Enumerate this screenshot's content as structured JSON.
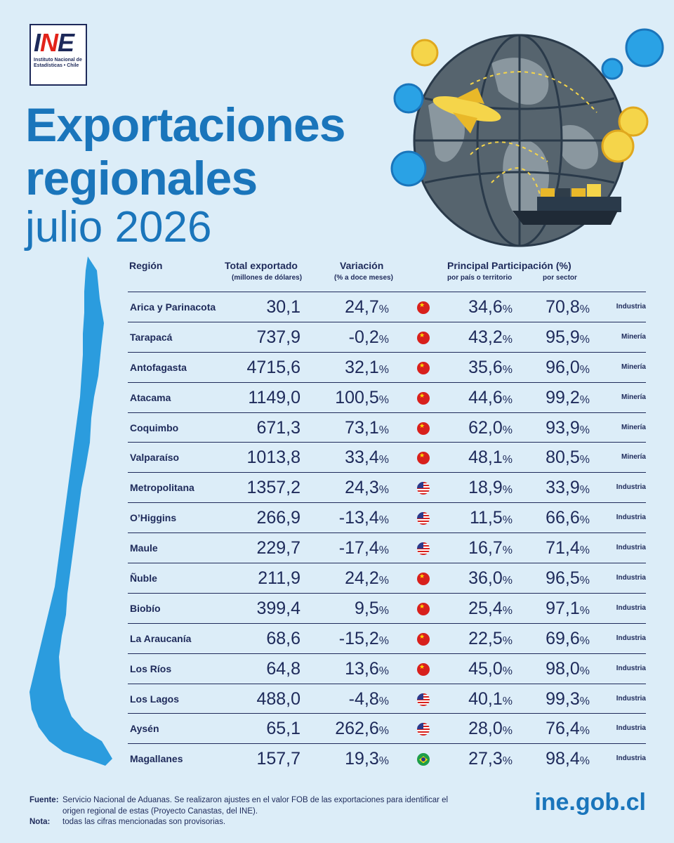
{
  "logo": {
    "mark_a": "I",
    "mark_b": "N",
    "mark_c": "E",
    "subtitle": "Instituto Nacional de Estadísticas • Chile"
  },
  "title": {
    "line1": "Exportaciones",
    "line2": "regionales",
    "line3": "julio 2026"
  },
  "headers": {
    "region": "Región",
    "total": "Total exportado",
    "total_sub": "(millones de dólares)",
    "variation": "Variación",
    "variation_sub": "(% a doce meses)",
    "participation": "Principal Participación (%)",
    "by_country": "por país o territorio",
    "by_sector": "por sector"
  },
  "colors": {
    "accent": "#1a75bb",
    "text": "#1e2a5a",
    "background": "#dcedf8"
  },
  "rows": [
    {
      "region": "Arica y Parinacota",
      "total": "30,1",
      "variation": "24,7",
      "flag": "china",
      "country_pct": "34,6",
      "sector_pct": "70,8",
      "sector": "Industria"
    },
    {
      "region": "Tarapacá",
      "total": "737,9",
      "variation": "-0,2",
      "flag": "china",
      "country_pct": "43,2",
      "sector_pct": "95,9",
      "sector": "Minería"
    },
    {
      "region": "Antofagasta",
      "total": "4715,6",
      "variation": "32,1",
      "flag": "china",
      "country_pct": "35,6",
      "sector_pct": "96,0",
      "sector": "Minería"
    },
    {
      "region": "Atacama",
      "total": "1149,0",
      "variation": "100,5",
      "flag": "china",
      "country_pct": "44,6",
      "sector_pct": "99,2",
      "sector": "Minería"
    },
    {
      "region": "Coquimbo",
      "total": "671,3",
      "variation": "73,1",
      "flag": "china",
      "country_pct": "62,0",
      "sector_pct": "93,9",
      "sector": "Minería"
    },
    {
      "region": "Valparaíso",
      "total": "1013,8",
      "variation": "33,4",
      "flag": "china",
      "country_pct": "48,1",
      "sector_pct": "80,5",
      "sector": "Minería"
    },
    {
      "region": "Metropolitana",
      "total": "1357,2",
      "variation": "24,3",
      "flag": "usa",
      "country_pct": "18,9",
      "sector_pct": "33,9",
      "sector": "Industria"
    },
    {
      "region": "O’Higgins",
      "total": "266,9",
      "variation": "-13,4",
      "flag": "usa",
      "country_pct": "11,5",
      "sector_pct": "66,6",
      "sector": "Industria"
    },
    {
      "region": "Maule",
      "total": "229,7",
      "variation": "-17,4",
      "flag": "usa",
      "country_pct": "16,7",
      "sector_pct": "71,4",
      "sector": "Industria"
    },
    {
      "region": "Ñuble",
      "total": "211,9",
      "variation": "24,2",
      "flag": "china",
      "country_pct": "36,0",
      "sector_pct": "96,5",
      "sector": "Industria"
    },
    {
      "region": "Biobío",
      "total": "399,4",
      "variation": "9,5",
      "flag": "china",
      "country_pct": "25,4",
      "sector_pct": "97,1",
      "sector": "Industria"
    },
    {
      "region": "La Araucanía",
      "total": "68,6",
      "variation": "-15,2",
      "flag": "china",
      "country_pct": "22,5",
      "sector_pct": "69,6",
      "sector": "Industria"
    },
    {
      "region": "Los Ríos",
      "total": "64,8",
      "variation": "13,6",
      "flag": "china",
      "country_pct": "45,0",
      "sector_pct": "98,0",
      "sector": "Industria"
    },
    {
      "region": "Los Lagos",
      "total": "488,0",
      "variation": "-4,8",
      "flag": "usa",
      "country_pct": "40,1",
      "sector_pct": "99,3",
      "sector": "Industria"
    },
    {
      "region": "Aysén",
      "total": "65,1",
      "variation": "262,6",
      "flag": "usa",
      "country_pct": "28,0",
      "sector_pct": "76,4",
      "sector": "Industria"
    },
    {
      "region": "Magallanes",
      "total": "157,7",
      "variation": "19,3",
      "flag": "brazil",
      "country_pct": "27,3",
      "sector_pct": "98,4",
      "sector": "Industria"
    }
  ],
  "percent_sign": "%",
  "footer": {
    "source_label": "Fuente:",
    "source_text": "Servicio Nacional de Aduanas. Se realizaron ajustes en el valor FOB de las exportaciones para identificar el origen regional de estas (Proyecto Canastas, del INE).",
    "note_label": "Nota:",
    "note_text": "todas las cifras mencionadas son provisorias."
  },
  "url": "ine.gob.cl"
}
